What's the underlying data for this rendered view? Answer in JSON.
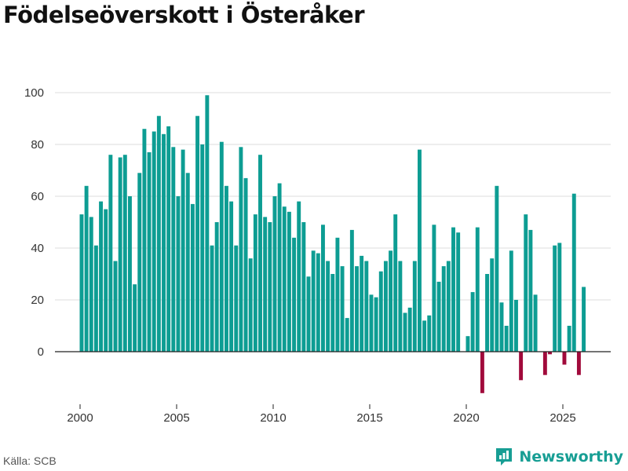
{
  "colors": {
    "positive": "#0d9d93",
    "negative": "#a10a3b",
    "grid": "#dddddd",
    "axis": "#222222",
    "brand": "#179e94"
  },
  "footer": {
    "source": "Källa: SCB",
    "brand": "Newsworthy",
    "brand_icon": "newsworthy-logo-icon"
  },
  "chart_data": {
    "type": "bar",
    "title": "Födelseöverskott i Österåker",
    "xlabel": "",
    "ylabel": "",
    "x_start": 2000,
    "x_step": 0.25,
    "x_ticks": [
      2000,
      2005,
      2010,
      2015,
      2020,
      2025
    ],
    "y_ticks": [
      0,
      20,
      40,
      60,
      80,
      100
    ],
    "ylim": [
      -17,
      100
    ],
    "grid": true,
    "values": [
      53,
      64,
      52,
      41,
      58,
      55,
      76,
      35,
      75,
      76,
      60,
      26,
      69,
      86,
      77,
      85,
      91,
      84,
      87,
      79,
      60,
      78,
      69,
      57,
      91,
      80,
      99,
      41,
      50,
      81,
      64,
      58,
      41,
      79,
      67,
      36,
      53,
      76,
      52,
      50,
      60,
      65,
      56,
      54,
      44,
      58,
      50,
      29,
      39,
      38,
      49,
      35,
      30,
      44,
      33,
      13,
      47,
      33,
      37,
      35,
      22,
      21,
      31,
      35,
      39,
      53,
      35,
      15,
      17,
      35,
      78,
      12,
      14,
      49,
      27,
      33,
      35,
      48,
      46,
      0,
      6,
      23,
      48,
      -16,
      30,
      36,
      64,
      19,
      10,
      39,
      20,
      -11,
      53,
      47,
      22,
      0,
      -9,
      -1,
      41,
      42,
      -5,
      10,
      61,
      -9,
      25
    ]
  }
}
